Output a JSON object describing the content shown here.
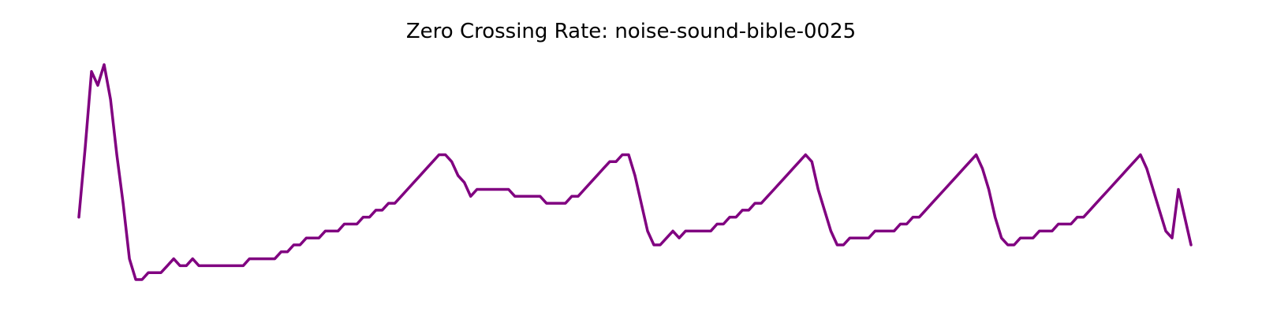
{
  "chart_data": {
    "type": "line",
    "title": "Zero Crossing Rate: noise-sound-bible-0025",
    "xlabel": "",
    "ylabel": "",
    "axes_visible": false,
    "grid": false,
    "legend": "none",
    "line_color": "#800080",
    "series": [
      {
        "values": [
          0.54,
          0.64,
          0.75,
          0.73,
          0.76,
          0.71,
          0.63,
          0.56,
          0.48,
          0.45,
          0.45,
          0.46,
          0.46,
          0.46,
          0.47,
          0.48,
          0.47,
          0.47,
          0.48,
          0.47,
          0.47,
          0.47,
          0.47,
          0.47,
          0.47,
          0.47,
          0.47,
          0.48,
          0.48,
          0.48,
          0.48,
          0.48,
          0.49,
          0.49,
          0.5,
          0.5,
          0.51,
          0.51,
          0.51,
          0.52,
          0.52,
          0.52,
          0.53,
          0.53,
          0.53,
          0.54,
          0.54,
          0.55,
          0.55,
          0.56,
          0.56,
          0.57,
          0.58,
          0.59,
          0.6,
          0.61,
          0.62,
          0.63,
          0.63,
          0.62,
          0.6,
          0.59,
          0.57,
          0.58,
          0.58,
          0.58,
          0.58,
          0.58,
          0.58,
          0.57,
          0.57,
          0.57,
          0.57,
          0.57,
          0.56,
          0.56,
          0.56,
          0.56,
          0.57,
          0.57,
          0.58,
          0.59,
          0.6,
          0.61,
          0.62,
          0.62,
          0.63,
          0.63,
          0.6,
          0.56,
          0.52,
          0.5,
          0.5,
          0.51,
          0.52,
          0.51,
          0.52,
          0.52,
          0.52,
          0.52,
          0.52,
          0.53,
          0.53,
          0.54,
          0.54,
          0.55,
          0.55,
          0.56,
          0.56,
          0.57,
          0.58,
          0.59,
          0.6,
          0.61,
          0.62,
          0.63,
          0.62,
          0.58,
          0.55,
          0.52,
          0.5,
          0.5,
          0.51,
          0.51,
          0.51,
          0.51,
          0.52,
          0.52,
          0.52,
          0.52,
          0.53,
          0.53,
          0.54,
          0.54,
          0.55,
          0.56,
          0.57,
          0.58,
          0.59,
          0.6,
          0.61,
          0.62,
          0.63,
          0.61,
          0.58,
          0.54,
          0.51,
          0.5,
          0.5,
          0.51,
          0.51,
          0.51,
          0.52,
          0.52,
          0.52,
          0.53,
          0.53,
          0.53,
          0.54,
          0.54,
          0.55,
          0.56,
          0.57,
          0.58,
          0.59,
          0.6,
          0.61,
          0.62,
          0.63,
          0.61,
          0.58,
          0.55,
          0.52,
          0.51,
          0.58,
          0.54,
          0.5
        ]
      }
    ]
  }
}
